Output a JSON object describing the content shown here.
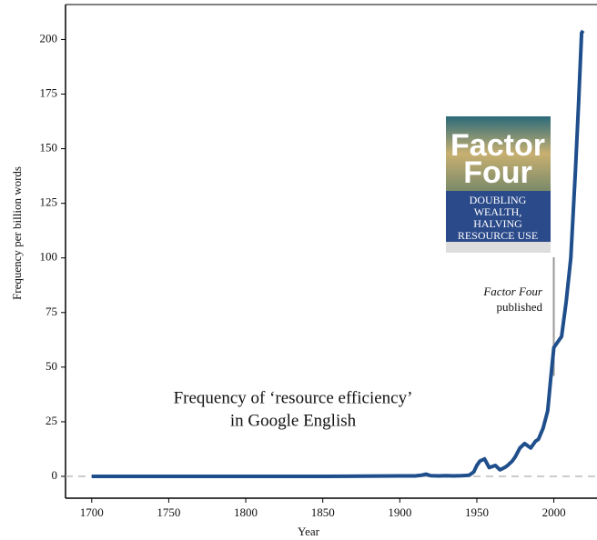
{
  "chart_data": {
    "type": "line",
    "xlabel": "Year",
    "ylabel": "Frequency per billion words",
    "note_lines": [
      "Frequency of ‘resource  efficiency’",
      "in Google English"
    ],
    "annotation_lines": [
      "Factor Four",
      "published"
    ],
    "annotation_x": 1997,
    "cover": {
      "title_lines": [
        "Factor",
        "Four"
      ],
      "subtitle_lines": [
        "DOUBLING",
        "WEALTH,",
        "HALVING",
        "RESOURCE USE"
      ]
    },
    "x": [
      1700,
      1750,
      1800,
      1850,
      1900,
      1910,
      1914,
      1917,
      1920,
      1925,
      1930,
      1935,
      1940,
      1945,
      1948,
      1950,
      1952,
      1955,
      1958,
      1962,
      1965,
      1968,
      1970,
      1973,
      1975,
      1978,
      1981,
      1983,
      1985,
      1988,
      1990,
      1993,
      1996,
      1998,
      2000,
      2003,
      2005,
      2008,
      2011,
      2014,
      2016,
      2018,
      2019
    ],
    "series": [
      {
        "name": "resource efficiency",
        "color": "#1f4e8c",
        "values": [
          0,
          0,
          0,
          0,
          0.2,
          0.2,
          0.5,
          1,
          0.3,
          0.2,
          0.3,
          0.2,
          0.3,
          0.5,
          2,
          5,
          7,
          8,
          4,
          5,
          3,
          4,
          5,
          7,
          9,
          13,
          15,
          14,
          13,
          16,
          17,
          22,
          30,
          45,
          59,
          62,
          64,
          80,
          100,
          140,
          170,
          203,
          204
        ]
      }
    ],
    "xlim": [
      1683,
      2028
    ],
    "ylim": [
      -10,
      216
    ],
    "xticks": [
      1700,
      1750,
      1800,
      1850,
      1900,
      1950,
      2000
    ],
    "yticks": [
      0,
      25,
      50,
      75,
      100,
      125,
      150,
      175,
      200
    ],
    "zero_line": true
  }
}
